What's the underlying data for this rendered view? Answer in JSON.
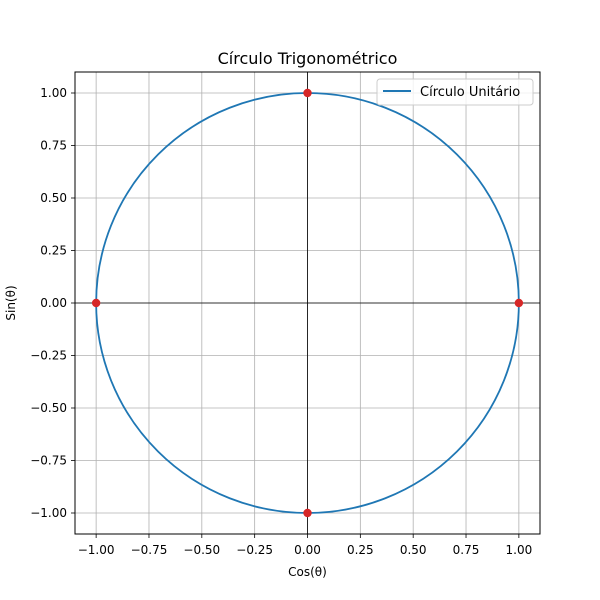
{
  "chart_data": {
    "type": "line",
    "title": "Círculo Trigonométrico",
    "xlabel": "Cos(θ)",
    "ylabel": "Sin(θ)",
    "xlim": [
      -1.1,
      1.1
    ],
    "ylim": [
      -1.1,
      1.1
    ],
    "grid": true,
    "legend_position": "top-right",
    "x_ticks": [
      -1.0,
      -0.75,
      -0.5,
      -0.25,
      0.0,
      0.25,
      0.5,
      0.75,
      1.0
    ],
    "y_ticks": [
      -1.0,
      -0.75,
      -0.5,
      -0.25,
      0.0,
      0.25,
      0.5,
      0.75,
      1.0
    ],
    "x_tick_labels": [
      "−1.00",
      "−0.75",
      "−0.50",
      "−0.25",
      "0.00",
      "0.25",
      "0.50",
      "0.75",
      "1.00"
    ],
    "y_tick_labels": [
      "−1.00",
      "−0.75",
      "−0.50",
      "−0.25",
      "0.00",
      "0.25",
      "0.50",
      "0.75",
      "1.00"
    ],
    "reference_lines": {
      "x": 0,
      "y": 0,
      "color": "#000000"
    },
    "series": [
      {
        "name": "Círculo Unitário",
        "kind": "circle",
        "center": [
          0,
          0
        ],
        "radius": 1,
        "color": "#1f77b4"
      }
    ],
    "points": {
      "color": "#d62728",
      "x": [
        1,
        0,
        -1,
        0
      ],
      "y": [
        0,
        1,
        0,
        -1
      ]
    }
  }
}
